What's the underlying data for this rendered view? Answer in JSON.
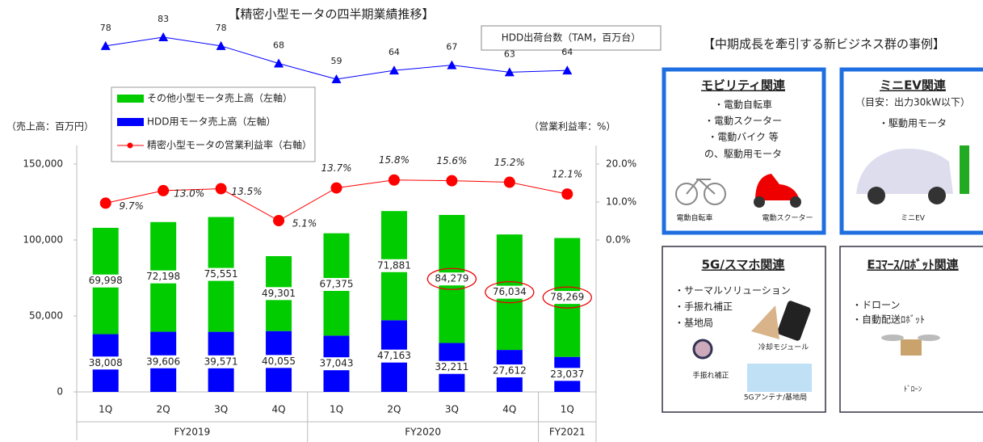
{
  "chart_data": {
    "type": "bar",
    "title": "【精密小型モータの四半期業績推移】",
    "y_axis_label": "（売上高：百万円）",
    "y2_axis_label": "（営業利益率：%）",
    "groups": [
      {
        "label": "FY2019",
        "categories": [
          "1Q",
          "2Q",
          "3Q",
          "4Q"
        ]
      },
      {
        "label": "FY2020",
        "categories": [
          "1Q",
          "2Q",
          "3Q",
          "4Q"
        ]
      },
      {
        "label": "FY2021",
        "categories": [
          "1Q"
        ]
      }
    ],
    "ylim": [
      0,
      150000
    ],
    "yticks": [
      0,
      {
        "value": 50000,
        "label": "50,000"
      },
      {
        "value": 100000,
        "label": "100,000"
      },
      {
        "value": 150000,
        "label": "150,000"
      }
    ],
    "y2lim": [
      -40,
      20
    ],
    "y2ticks": [
      {
        "value": 0,
        "label": "0.0%"
      },
      {
        "value": 10,
        "label": "10.0%"
      },
      {
        "value": 20,
        "label": "20.0%"
      }
    ],
    "series": [
      {
        "name": "HDD用モータ売上高（左軸）",
        "color": "#0000ff",
        "values": [
          38008,
          39606,
          39571,
          40055,
          37043,
          47163,
          32211,
          27612,
          23037
        ],
        "value_labels": [
          "38,008",
          "39,606",
          "39,571",
          "40,055",
          "37,043",
          "47,163",
          "32,211",
          "27,612",
          "23,037"
        ]
      },
      {
        "name": "その他小型モータ売上高（左軸）",
        "color": "#00cc00",
        "values": [
          69998,
          72198,
          75551,
          49301,
          67375,
          71881,
          84279,
          76034,
          78269
        ],
        "value_labels": [
          "69,998",
          "72,198",
          "75,551",
          "49,301",
          "67,375",
          "71,881",
          "84,279",
          "76,034",
          "78,269"
        ]
      },
      {
        "name": "精密小型モータの営業利益率（右軸）",
        "color": "#ff0000",
        "type": "line",
        "axis": "y2",
        "values": [
          9.7,
          13.0,
          13.5,
          5.1,
          13.7,
          15.8,
          15.6,
          15.2,
          12.1
        ],
        "value_labels": [
          "9.7%",
          "13.0%",
          "13.5%",
          "5.1%",
          "13.7%",
          "15.8%",
          "15.6%",
          "15.2%",
          "12.1%"
        ]
      },
      {
        "name": "HDD出荷台数（TAM，百万台）",
        "color": "#0000ff",
        "type": "line",
        "axis": "none",
        "values": [
          78,
          83,
          78,
          68,
          59,
          64,
          67,
          63,
          64
        ]
      }
    ]
  },
  "panels": {
    "title": "【中期成長を牽引する新ビジネス群の事例】",
    "items": [
      {
        "title": "モビリティ関連",
        "lines": [
          "・電動自転車",
          "・電動スクーター",
          "・電動バイク 等",
          "の、駆動用モータ"
        ],
        "captions": [
          "電動自転車",
          "電動スクーター"
        ]
      },
      {
        "title": "ミニEV関連",
        "lines": [
          "（目安：出力30kW以下）",
          "・駆動用モータ"
        ],
        "captions": [
          "ミニEV"
        ]
      },
      {
        "title": "5G/スマホ関連",
        "lines": [
          "・サーマルソリューション",
          "・手振れ補正",
          "・基地局"
        ],
        "captions": [
          "冷却モジュール",
          "手振れ補正",
          "5Gアンテナ/基地局"
        ]
      },
      {
        "title": "Eｺﾏｰｽ/ﾛﾎﾞｯﾄ関連",
        "lines": [
          "・ドローン",
          "・自動配送ﾛﾎﾞｯﾄ"
        ],
        "captions": [
          "ﾄﾞﾛｰﾝ"
        ]
      }
    ]
  }
}
